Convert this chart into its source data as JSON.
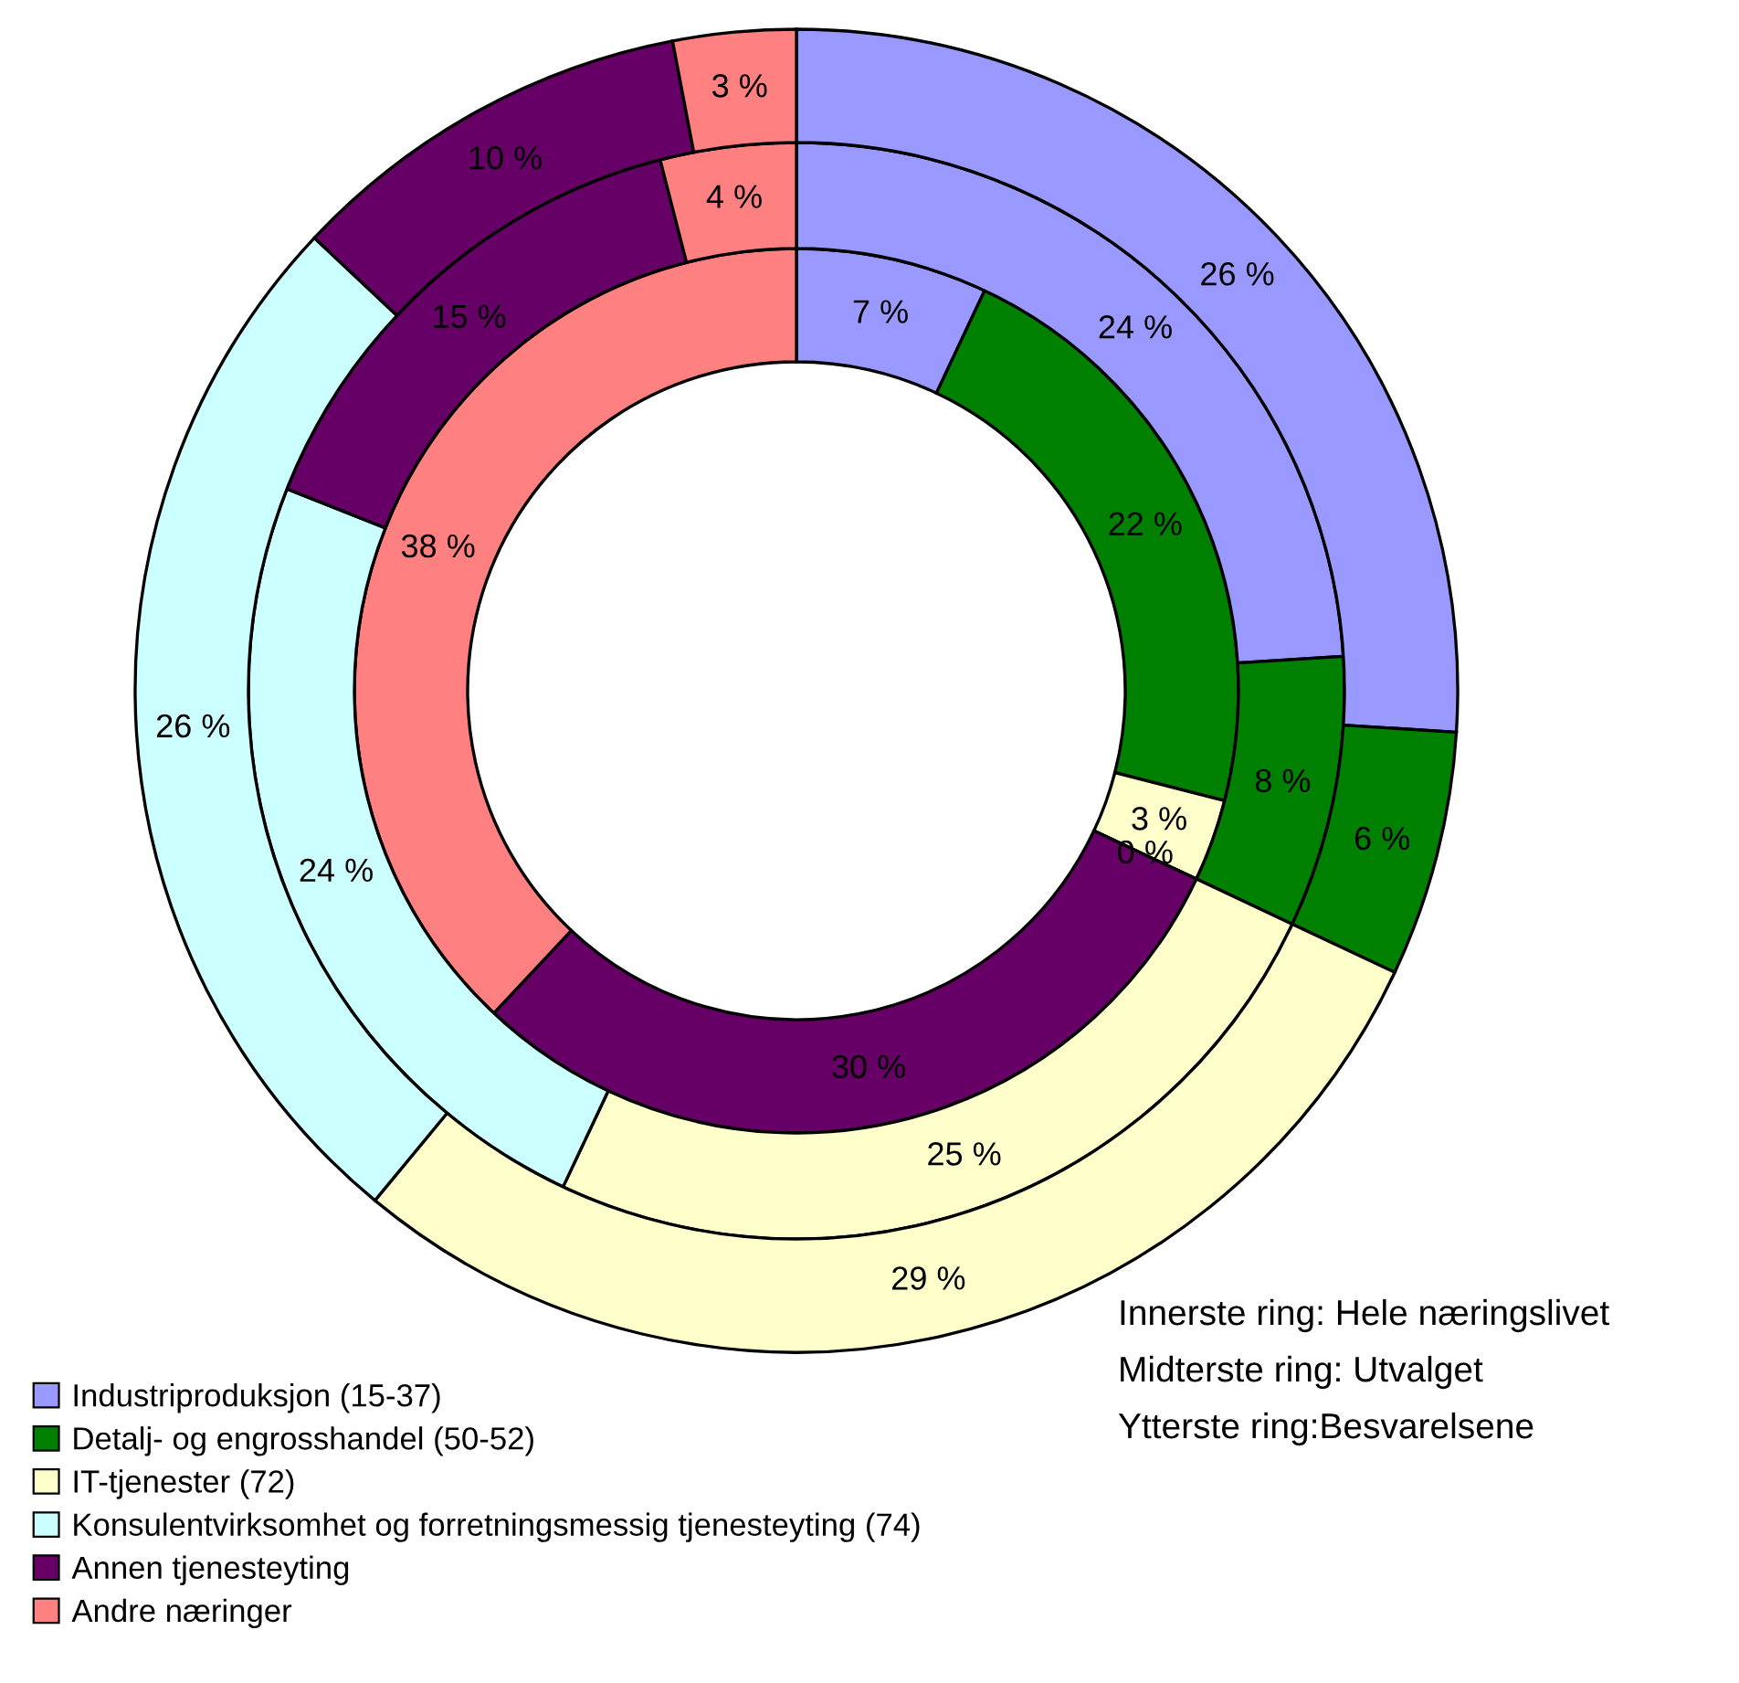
{
  "chart_data": {
    "type": "donut",
    "categories": [
      "Industriproduksjon (15-37)",
      "Detalj- og engrosshandel (50-52)",
      "IT-tjenester (72)",
      "Konsulentvirksomhet og forretningsmessig tjenesteyting (74)",
      "Annen tjenesteyting",
      "Andre næringer"
    ],
    "colors": [
      "#9999ff",
      "#008000",
      "#ffffcc",
      "#ccffff",
      "#660066",
      "#ff8080"
    ],
    "series": [
      {
        "values": [
          7,
          22,
          3,
          0,
          30,
          38
        ],
        "value_labels": [
          "7 %",
          "22 %",
          "3 %",
          "0 %",
          "30 %",
          "38 %"
        ]
      },
      {
        "values": [
          24,
          8,
          25,
          24,
          15,
          4
        ],
        "value_labels": [
          "24 %",
          "8 %",
          "25 %",
          "24 %",
          "15 %",
          "4 %"
        ]
      },
      {
        "values": [
          26,
          6,
          29,
          26,
          10,
          3
        ],
        "value_labels": [
          "26 %",
          "6 %",
          "29 %",
          "26 %",
          "10 %",
          "3 %"
        ]
      }
    ],
    "legend": "bottom left",
    "annotations": [
      "Innerste ring: Hele næringslivet",
      "Midterste ring: Utvalget",
      "Ytterste ring:Besvarelsene"
    ]
  }
}
